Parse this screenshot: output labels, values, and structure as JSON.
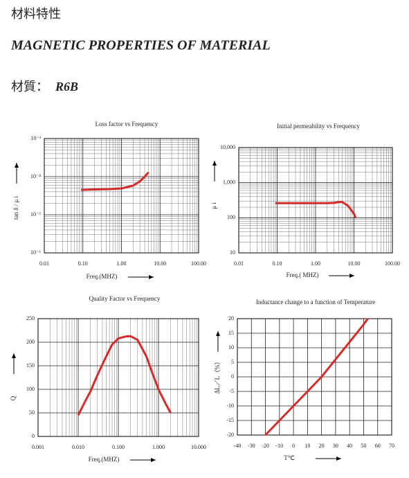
{
  "header": {
    "title_cn": "材料特性",
    "title_en": "MAGNETIC PROPERTIES OF MATERIAL",
    "material_label": "材質：",
    "material": "R6B"
  },
  "chart_data": [
    {
      "type": "line",
      "title": "Loss factor vs Frequency",
      "x_label": "Freq.(MHZ)",
      "y_label": "tan δ / μ i",
      "xlog": true,
      "ylog": true,
      "grid": true,
      "xlim": [
        0.01,
        100
      ],
      "xticks": [
        0.01,
        {
          "value": 0.1,
          "label": "0.10"
        },
        {
          "value": 1,
          "label": "1.00"
        },
        {
          "value": 10,
          "label": "10.00"
        },
        {
          "value": 100,
          "label": "100.00"
        }
      ],
      "ylim": [
        1e-06,
        0.001
      ],
      "yticks": [
        {
          "value": 1e-06,
          "label": "10⁻⁶"
        },
        {
          "value": 1e-05,
          "label": "10⁻⁵"
        },
        {
          "value": 0.0001,
          "label": "10⁻⁴"
        },
        {
          "value": 0.001,
          "label": "10⁻³"
        }
      ],
      "series": [
        {
          "color": "#d42a2a",
          "x": [
            0.09,
            0.2,
            0.5,
            1,
            2,
            3,
            4,
            5
          ],
          "values": [
            4.5e-05,
            4.6e-05,
            4.7e-05,
            4.9e-05,
            5.8e-05,
            7.5e-05,
            0.0001,
            0.00013
          ]
        }
      ]
    },
    {
      "type": "line",
      "title": "Initial permeability vs Frequency",
      "x_label": "Freq.( MHZ)",
      "y_label": "μ i",
      "xlog": true,
      "ylog": true,
      "grid": true,
      "xlim": [
        0.01,
        100
      ],
      "xticks": [
        0.01,
        {
          "value": 0.1,
          "label": "0.10"
        },
        {
          "value": 1,
          "label": "1.00"
        },
        {
          "value": 10,
          "label": "10.00"
        },
        {
          "value": 100,
          "label": "100.00"
        }
      ],
      "ylim": [
        10,
        10000
      ],
      "yticks": [
        10,
        100,
        {
          "value": 1000,
          "label": "1,000"
        },
        {
          "value": 10000,
          "label": "10,000"
        }
      ],
      "series": [
        {
          "color": "#d42a2a",
          "x": [
            0.09,
            0.5,
            1,
            2,
            3,
            4,
            5,
            7,
            10,
            11
          ],
          "values": [
            260,
            260,
            260,
            260,
            265,
            280,
            280,
            220,
            130,
            100
          ]
        }
      ]
    },
    {
      "type": "line",
      "title": "Quality  Factor vs Frequency",
      "x_label": "Freq.(MHZ)",
      "y_label": "Q",
      "xlog": true,
      "ylog": false,
      "grid": true,
      "xlim": [
        0.001,
        10
      ],
      "xticks": [
        0.001,
        {
          "value": 0.01,
          "label": "0.010"
        },
        {
          "value": 0.1,
          "label": "0.100"
        },
        {
          "value": 1,
          "label": "1.000"
        },
        {
          "value": 10,
          "label": "10.000"
        }
      ],
      "ylim": [
        0,
        250
      ],
      "yticks": [
        0,
        50,
        100,
        150,
        200,
        250
      ],
      "series": [
        {
          "color": "#d42a2a",
          "x": [
            0.01,
            0.015,
            0.02,
            0.03,
            0.05,
            0.07,
            0.1,
            0.15,
            0.2,
            0.3,
            0.5,
            0.7,
            1,
            1.5,
            2
          ],
          "values": [
            45,
            75,
            95,
            130,
            170,
            195,
            208,
            212,
            213,
            205,
            170,
            135,
            100,
            70,
            50
          ]
        }
      ]
    },
    {
      "type": "line",
      "title": "Inductance change to a function  of Temperature",
      "x_label": "T℃",
      "y_label": "ΔL／L（%）",
      "xlog": false,
      "ylog": false,
      "grid": true,
      "xlim": [
        -40,
        70
      ],
      "xticks": [
        -40,
        -30,
        -20,
        -10,
        0,
        10,
        20,
        30,
        40,
        50,
        60,
        70
      ],
      "ylim": [
        -20,
        20
      ],
      "yticks": [
        -20,
        -15,
        -10,
        -5,
        0,
        5,
        10,
        15,
        20
      ],
      "series": [
        {
          "color": "#d42a2a",
          "x": [
            -20,
            -10,
            0,
            10,
            20,
            30,
            40,
            50,
            53
          ],
          "values": [
            -20,
            -15,
            -10,
            -5,
            0,
            6,
            12,
            18,
            20
          ]
        }
      ]
    }
  ]
}
